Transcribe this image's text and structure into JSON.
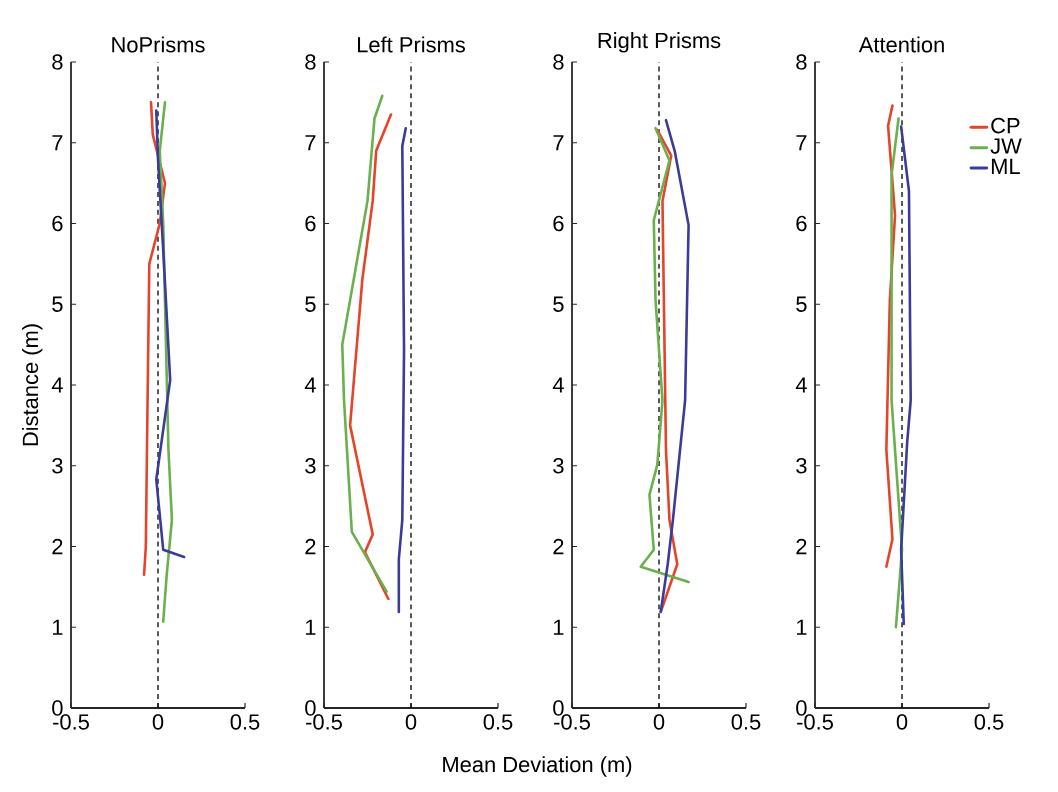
{
  "chart_data": [
    {
      "type": "line",
      "title": "NoPrisms",
      "ylabel": "Distance (m)",
      "xlim": [
        -0.5,
        0.5
      ],
      "ylim": [
        0,
        8
      ],
      "xticks": [
        -0.5,
        0,
        0.5
      ],
      "yticks": [
        0,
        1,
        2,
        3,
        4,
        5,
        6,
        7,
        8
      ],
      "ref_lines": [
        {
          "axis": "x",
          "value": 0,
          "color": "#000000",
          "line_style": "dashed"
        }
      ],
      "series": [
        {
          "color": "#e5432a",
          "x": [
            -0.04,
            -0.03,
            0.04,
            0.01,
            -0.05,
            -0.06,
            -0.07,
            -0.08
          ],
          "values": [
            7.5,
            7.1,
            6.5,
            6.0,
            5.5,
            3.8,
            2.0,
            1.65
          ]
        },
        {
          "color": "#6ab04c",
          "x": [
            0.04,
            0.01,
            0.03,
            0.04,
            0.06,
            0.08,
            0.05,
            0.03
          ],
          "values": [
            7.5,
            6.9,
            6.0,
            5.05,
            3.2,
            2.33,
            1.65,
            1.07
          ]
        },
        {
          "color": "#3b3b9a",
          "x": [
            -0.01,
            0,
            0.03,
            0.07,
            -0.01,
            0.03,
            0.15
          ],
          "values": [
            7.4,
            6.8,
            5.67,
            4.06,
            2.83,
            1.96,
            1.87
          ]
        }
      ]
    },
    {
      "type": "line",
      "title": "Left Prisms",
      "xlabel": "Mean Deviation (m)",
      "xlim": [
        -0.5,
        0.5
      ],
      "ylim": [
        0,
        8
      ],
      "xticks": [
        -0.5,
        0,
        0.5
      ],
      "yticks": [
        0,
        1,
        2,
        3,
        4,
        5,
        6,
        7,
        8
      ],
      "ref_lines": [
        {
          "axis": "x",
          "value": 0,
          "color": "#000000",
          "line_style": "dashed"
        }
      ],
      "series": [
        {
          "color": "#e5432a",
          "x": [
            -0.115,
            -0.2,
            -0.22,
            -0.28,
            -0.35,
            -0.22,
            -0.265,
            -0.13
          ],
          "values": [
            7.35,
            6.9,
            6.28,
            5.3,
            3.5,
            2.15,
            1.93,
            1.35
          ]
        },
        {
          "color": "#6ab04c",
          "x": [
            -0.165,
            -0.21,
            -0.25,
            -0.395,
            -0.385,
            -0.34,
            -0.14
          ],
          "values": [
            7.58,
            7.3,
            6.28,
            4.5,
            3.81,
            2.18,
            1.44
          ]
        },
        {
          "color": "#3b3b9a",
          "x": [
            -0.03,
            -0.05,
            -0.04,
            -0.05,
            -0.07,
            -0.07
          ],
          "values": [
            7.18,
            6.96,
            4.43,
            2.33,
            1.84,
            1.19
          ]
        }
      ]
    },
    {
      "type": "line",
      "title": "Right Prisms",
      "xlim": [
        -0.5,
        0.5
      ],
      "ylim": [
        0,
        8
      ],
      "xticks": [
        -0.5,
        0,
        0.5
      ],
      "yticks": [
        0,
        1,
        2,
        3,
        4,
        5,
        6,
        7,
        8
      ],
      "ref_lines": [
        {
          "axis": "x",
          "value": 0,
          "color": "#000000",
          "line_style": "dashed"
        }
      ],
      "series": [
        {
          "color": "#e5432a",
          "x": [
            -0.01,
            0.07,
            0.02,
            0.04,
            0.06,
            0.105,
            0.01
          ],
          "values": [
            7.16,
            6.84,
            6.28,
            3.2,
            2.33,
            1.78,
            1.19
          ]
        },
        {
          "color": "#6ab04c",
          "x": [
            -0.02,
            0.06,
            -0.03,
            -0.02,
            0.02,
            -0.01,
            -0.055,
            -0.03,
            -0.105,
            0.17
          ],
          "values": [
            7.18,
            6.78,
            6.04,
            5.05,
            3.81,
            3.01,
            2.64,
            1.96,
            1.75,
            1.56
          ]
        },
        {
          "color": "#3b3b9a",
          "x": [
            0.04,
            0.09,
            0.17,
            0.15,
            0.08,
            0.05,
            0.01
          ],
          "values": [
            7.28,
            6.9,
            5.98,
            3.81,
            2.33,
            1.78,
            1.19
          ]
        }
      ]
    },
    {
      "type": "line",
      "title": "Attention",
      "xlim": [
        -0.5,
        0.5
      ],
      "ylim": [
        0,
        8
      ],
      "xticks": [
        -0.5,
        0,
        0.5
      ],
      "yticks": [
        0,
        1,
        2,
        3,
        4,
        5,
        6,
        7,
        8
      ],
      "ref_lines": [
        {
          "axis": "x",
          "value": 0,
          "color": "#000000",
          "line_style": "dashed"
        }
      ],
      "legend": "top right",
      "series": [
        {
          "name": "CP",
          "color": "#e5432a",
          "x": [
            -0.055,
            -0.08,
            -0.04,
            -0.07,
            -0.09,
            -0.055,
            -0.09
          ],
          "values": [
            7.46,
            7.21,
            6.1,
            5.05,
            3.2,
            2.09,
            1.75
          ]
        },
        {
          "name": "JW",
          "color": "#6ab04c",
          "x": [
            -0.02,
            -0.06,
            -0.06,
            0,
            -0.035
          ],
          "values": [
            7.3,
            6.6,
            3.81,
            1.96,
            1.0
          ]
        },
        {
          "name": "ML",
          "color": "#3b3b9a",
          "x": [
            -0.005,
            0.04,
            0.05,
            0.03,
            -0.005,
            0.01
          ],
          "values": [
            7.2,
            6.4,
            3.81,
            3.3,
            1.96,
            1.04
          ]
        }
      ]
    }
  ]
}
